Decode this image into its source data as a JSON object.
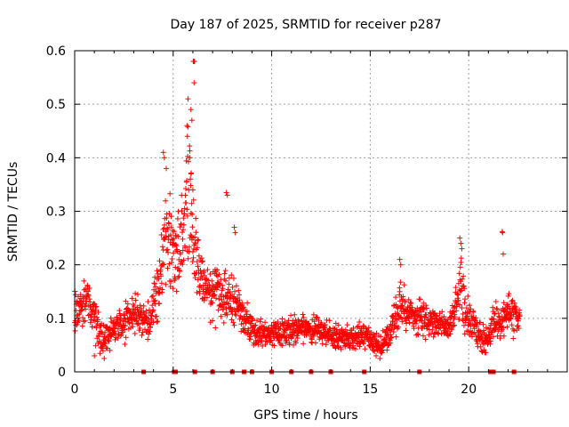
{
  "chart_data": {
    "type": "scatter",
    "title": "Day 187 of 2025, SRMTID for receiver p287",
    "xlabel": "GPS time / hours",
    "ylabel": "SRMTID / TECUs",
    "xlim": [
      0,
      25
    ],
    "ylim": [
      0,
      0.6
    ],
    "x_ticks": [
      0,
      5,
      10,
      15,
      20
    ],
    "x_tick_labels": [
      "0",
      "5",
      "10",
      "15",
      "20"
    ],
    "y_ticks": [
      0,
      0.1,
      0.2,
      0.3,
      0.4,
      0.5,
      0.6
    ],
    "y_tick_labels": [
      "0",
      "0.1",
      "0.2",
      "0.3",
      "0.4",
      "0.5",
      "0.6"
    ],
    "grid": true,
    "marker": "+",
    "series": [
      {
        "name": "SRMTID",
        "color": "#ff0000",
        "profile": {
          "x": [
            0.0,
            0.3,
            0.6,
            0.9,
            1.2,
            1.5,
            2.0,
            2.5,
            3.0,
            3.5,
            3.8,
            4.2,
            4.5,
            4.8,
            5.0,
            5.3,
            5.6,
            5.8,
            6.0,
            6.3,
            6.6,
            7.0,
            7.5,
            8.0,
            8.5,
            9.0,
            9.5,
            10.0,
            11.0,
            12.0,
            13.0,
            14.0,
            14.5,
            15.0,
            15.5,
            16.0,
            16.5,
            17.0,
            17.5,
            18.0,
            18.5,
            19.0,
            19.3,
            19.6,
            20.0,
            20.5,
            21.0,
            21.3,
            21.5,
            21.8,
            22.2,
            22.6
          ],
          "y": [
            0.11,
            0.12,
            0.14,
            0.12,
            0.07,
            0.06,
            0.08,
            0.09,
            0.11,
            0.1,
            0.09,
            0.16,
            0.22,
            0.25,
            0.2,
            0.22,
            0.3,
            0.35,
            0.26,
            0.18,
            0.16,
            0.15,
            0.14,
            0.14,
            0.11,
            0.08,
            0.07,
            0.07,
            0.08,
            0.08,
            0.07,
            0.06,
            0.07,
            0.06,
            0.05,
            0.07,
            0.13,
            0.11,
            0.1,
            0.09,
            0.09,
            0.08,
            0.11,
            0.15,
            0.09,
            0.07,
            0.06,
            0.1,
            0.09,
            0.1,
            0.11,
            0.1
          ],
          "spread": [
            0.03,
            0.03,
            0.04,
            0.04,
            0.03,
            0.02,
            0.02,
            0.03,
            0.03,
            0.03,
            0.03,
            0.05,
            0.06,
            0.07,
            0.05,
            0.06,
            0.1,
            0.12,
            0.08,
            0.05,
            0.04,
            0.04,
            0.04,
            0.04,
            0.03,
            0.02,
            0.02,
            0.02,
            0.02,
            0.02,
            0.02,
            0.02,
            0.02,
            0.02,
            0.02,
            0.02,
            0.04,
            0.03,
            0.03,
            0.02,
            0.02,
            0.02,
            0.03,
            0.05,
            0.03,
            0.02,
            0.02,
            0.03,
            0.03,
            0.03,
            0.03,
            0.02
          ]
        },
        "peaks": [
          {
            "x": 4.5,
            "y": 0.41
          },
          {
            "x": 4.55,
            "y": 0.4
          },
          {
            "x": 4.65,
            "y": 0.38
          },
          {
            "x": 5.75,
            "y": 0.51
          },
          {
            "x": 5.7,
            "y": 0.46
          },
          {
            "x": 5.72,
            "y": 0.44
          },
          {
            "x": 5.9,
            "y": 0.49
          },
          {
            "x": 5.95,
            "y": 0.47
          },
          {
            "x": 6.02,
            "y": 0.58
          },
          {
            "x": 6.05,
            "y": 0.58
          },
          {
            "x": 6.08,
            "y": 0.58
          },
          {
            "x": 6.06,
            "y": 0.54
          },
          {
            "x": 5.85,
            "y": 0.4
          },
          {
            "x": 5.9,
            "y": 0.37
          },
          {
            "x": 6.0,
            "y": 0.34
          },
          {
            "x": 7.7,
            "y": 0.335
          },
          {
            "x": 7.75,
            "y": 0.33
          },
          {
            "x": 8.1,
            "y": 0.27
          },
          {
            "x": 8.15,
            "y": 0.26
          },
          {
            "x": 16.5,
            "y": 0.21
          },
          {
            "x": 16.55,
            "y": 0.2
          },
          {
            "x": 19.55,
            "y": 0.25
          },
          {
            "x": 19.6,
            "y": 0.24
          },
          {
            "x": 19.65,
            "y": 0.23
          },
          {
            "x": 21.7,
            "y": 0.262
          },
          {
            "x": 21.72,
            "y": 0.26
          },
          {
            "x": 21.75,
            "y": 0.22
          },
          {
            "x": 1.0,
            "y": 0.03
          },
          {
            "x": 1.5,
            "y": 0.025
          },
          {
            "x": 15.3,
            "y": 0.03
          }
        ],
        "zero_markers_x": [
          3.5,
          5.05,
          5.12,
          6.1,
          7.0,
          8.0,
          8.6,
          9.0,
          10.0,
          11.0,
          12.0,
          13.0,
          14.7,
          17.5,
          21.1,
          21.25,
          22.3
        ]
      }
    ]
  }
}
